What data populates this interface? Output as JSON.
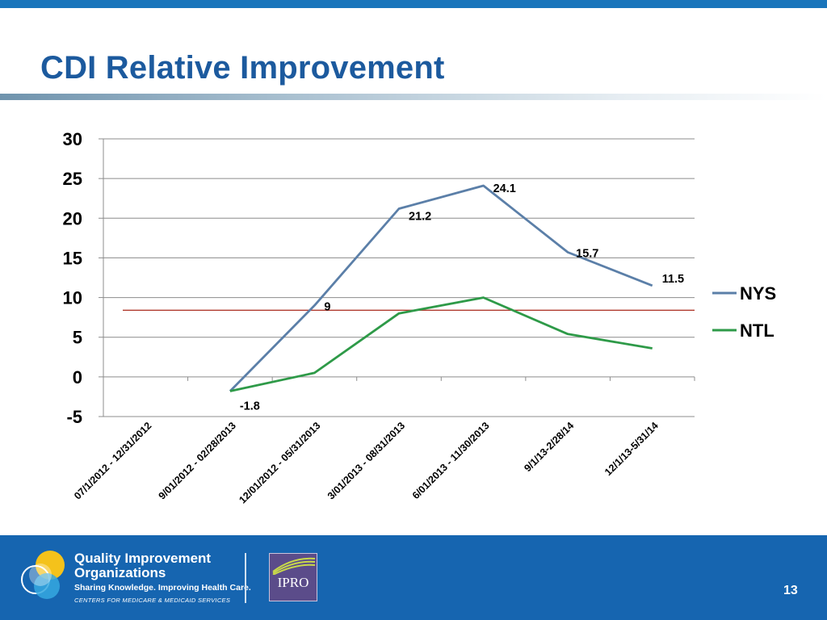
{
  "slide": {
    "title": "CDI Relative Improvement",
    "page_number": "13"
  },
  "footer": {
    "org_line1": "Quality Improvement",
    "org_line2": "Organizations",
    "tagline": "Sharing Knowledge. Improving Health Care.",
    "subtitle": "CENTERS FOR MEDICARE & MEDICAID SERVICES",
    "partner_logo_text": "IPRO"
  },
  "colors": {
    "top_bar": "#1a75bb",
    "title": "#1c5a9e",
    "footer": "#1665b0",
    "nys": "#5b7fa8",
    "ntl": "#2e9a48",
    "reference_line": "#b03a2e"
  },
  "chart_data": {
    "type": "line",
    "categories": [
      "07/1/2012 - 12/31/2012",
      "9/01/2012 - 02/28/2013",
      "12/01/2012 - 05/31/2013",
      "3/01/2013 - 08/31/2013",
      "6/01/2013 - 11/30/2013",
      "9/1/13-2/28/14",
      "12/1/13-5/31/14"
    ],
    "series": [
      {
        "name": "NYS",
        "values": [
          null,
          -1.8,
          9,
          21.2,
          24.1,
          15.7,
          11.5
        ]
      },
      {
        "name": "NTL",
        "values": [
          null,
          -1.8,
          0.5,
          8.0,
          10.0,
          5.4,
          3.6
        ]
      }
    ],
    "data_labels": {
      "NYS": [
        "",
        "-1.8",
        "9",
        "21.2",
        "24.1",
        "15.7",
        "11.5"
      ]
    },
    "reference_line": 8.4,
    "ylim": [
      -5,
      30
    ],
    "yticks": [
      30,
      25,
      20,
      15,
      10,
      5,
      0,
      -5
    ],
    "grid": true,
    "legend_position": "right",
    "title": "",
    "xlabel": "",
    "ylabel": ""
  }
}
